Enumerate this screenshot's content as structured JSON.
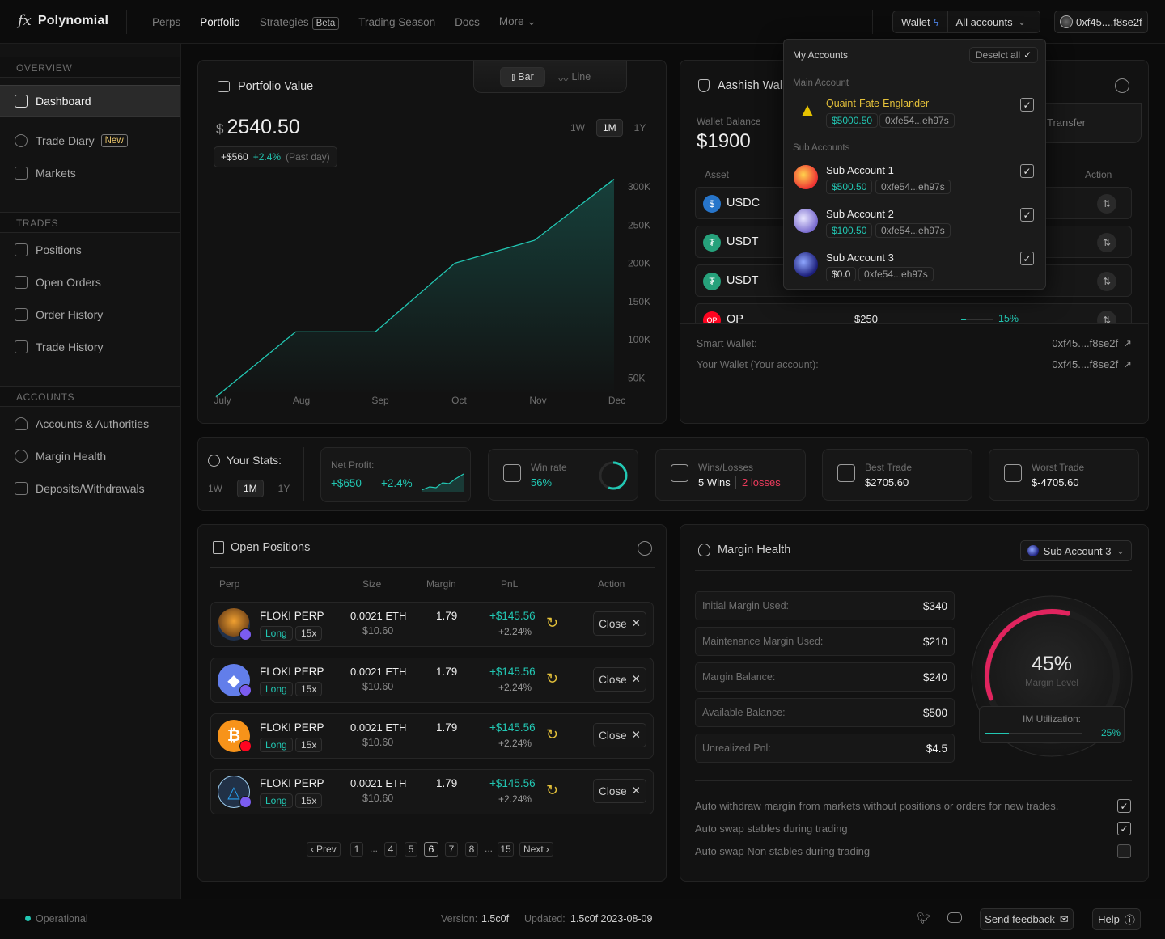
{
  "app": {
    "name": "Polynomial",
    "logo_glyph": "fx"
  },
  "nav": {
    "items": [
      "Perps",
      "Portfolio",
      "Strategies",
      "Trading Season",
      "Docs",
      "More"
    ],
    "strategies_badge": "Beta",
    "active": "Portfolio"
  },
  "header": {
    "wallet_label": "Wallet",
    "accounts_label": "All accounts",
    "address": "0xf45....f8se2f"
  },
  "sidebar": {
    "overview_label": "OVERVIEW",
    "overview_items": [
      {
        "label": "Dashboard",
        "icon": "dashboard-icon"
      },
      {
        "label": "Trade Diary",
        "icon": "diary-icon",
        "badge": "New"
      },
      {
        "label": "Markets",
        "icon": "markets-icon"
      }
    ],
    "trades_label": "TRADES",
    "trades_items": [
      {
        "label": "Positions"
      },
      {
        "label": "Open Orders"
      },
      {
        "label": "Order History"
      },
      {
        "label": "Trade History"
      }
    ],
    "accounts_label": "ACCOUNTS",
    "accounts_items": [
      {
        "label": "Accounts & Authorities"
      },
      {
        "label": "Margin Health"
      },
      {
        "label": "Deposits/Withdrawals"
      }
    ]
  },
  "portfolio": {
    "title": "Portfolio Value",
    "toggle": {
      "bar": "Bar",
      "line": "Line"
    },
    "currency": "$",
    "value": "2540.50",
    "change_amount": "+$560",
    "change_pct": "+2.4%",
    "change_period": "(Past day)",
    "ranges": [
      "1W",
      "1M",
      "1Y"
    ],
    "active_range": "1M"
  },
  "chart_data": {
    "type": "area",
    "x": [
      "July",
      "Aug",
      "Sep",
      "Oct",
      "Nov",
      "Dec"
    ],
    "y": [
      25000,
      110000,
      110000,
      200000,
      230000,
      310000
    ],
    "y_ticks": [
      "300K",
      "250K",
      "200K",
      "150K",
      "100K",
      "50K"
    ],
    "ylim": [
      25000,
      320000
    ],
    "color": "#22c7b3",
    "grid": false
  },
  "wallet": {
    "title": "Aashish Wall",
    "balance_label": "Wallet Balance",
    "balance": "$1900",
    "transfer_label": "Transfer",
    "col_asset": "Asset",
    "col_action": "Action",
    "assets": [
      {
        "name": "USDC",
        "color": "#2775ca",
        "symbol": "$"
      },
      {
        "name": "USDT",
        "color": "#26a17b",
        "symbol": "₮"
      },
      {
        "name": "USDT",
        "color": "#26a17b",
        "symbol": "₮"
      },
      {
        "name": "OP",
        "color": "#ff0420",
        "symbol": "OP",
        "amount": "$250",
        "pct": "15%"
      }
    ],
    "smart_wallet_label": "Smart Wallet:",
    "smart_wallet": "0xf45....f8se2f",
    "your_wallet_label": "Your Wallet (Your account):",
    "your_wallet": "0xf45....f8se2f"
  },
  "accounts_dropdown": {
    "title": "My Accounts",
    "deselect": "Deselct all",
    "main_label": "Main Account",
    "sub_label": "Sub Accounts",
    "accounts": [
      {
        "name": "Quaint-Fate-Englander",
        "balance": "$5000.50",
        "address": "0xfe54...eh97s",
        "checked": true
      },
      {
        "name": "Sub Account 1",
        "balance": "$500.50",
        "address": "0xfe54...eh97s",
        "checked": true
      },
      {
        "name": "Sub Account 2",
        "balance": "$100.50",
        "address": "0xfe54...eh97s",
        "checked": true
      },
      {
        "name": "Sub Account 3",
        "balance": "$0.0",
        "address": "0xfe54...eh97s",
        "checked": true
      }
    ]
  },
  "stats": {
    "title": "Your Stats:",
    "ranges": [
      "1W",
      "1M",
      "1Y"
    ],
    "active_range": "1M",
    "net_profit_label": "Net Profit:",
    "net_profit": "+$650",
    "net_profit_pct": "+2.4%",
    "win_rate_label": "Win rate",
    "win_rate": "56%",
    "win_rate_fraction": 0.56,
    "wl_label": "Wins/Losses",
    "wins": "5 Wins",
    "losses": "2 losses",
    "best_label": "Best Trade",
    "best": "$2705.60",
    "worst_label": "Worst Trade",
    "worst": "$-4705.60"
  },
  "positions": {
    "title": "Open Positions",
    "columns": [
      "Perp",
      "Size",
      "Margin",
      "PnL",
      "Action"
    ],
    "rows": [
      {
        "market": "FLOKI PERP",
        "side": "Long",
        "leverage": "15x",
        "size": "0.0021 ETH",
        "size_usd": "$10.60",
        "margin": "1.79",
        "pnl": "+$145.56",
        "pnl_pct": "+2.24%",
        "action": "Close",
        "coin": "floki"
      },
      {
        "market": "FLOKI PERP",
        "side": "Long",
        "leverage": "15x",
        "size": "0.0021 ETH",
        "size_usd": "$10.60",
        "margin": "1.79",
        "pnl": "+$145.56",
        "pnl_pct": "+2.24%",
        "action": "Close",
        "coin": "eth"
      },
      {
        "market": "FLOKI PERP",
        "side": "Long",
        "leverage": "15x",
        "size": "0.0021 ETH",
        "size_usd": "$10.60",
        "margin": "1.79",
        "pnl": "+$145.56",
        "pnl_pct": "+2.24%",
        "action": "Close",
        "coin": "btc"
      },
      {
        "market": "FLOKI PERP",
        "side": "Long",
        "leverage": "15x",
        "size": "0.0021 ETH",
        "size_usd": "$10.60",
        "margin": "1.79",
        "pnl": "+$145.56",
        "pnl_pct": "+2.24%",
        "action": "Close",
        "coin": "arb"
      }
    ],
    "pagination": {
      "prev": "Prev",
      "next": "Next",
      "pages": [
        "1",
        "...",
        "4",
        "5",
        "6",
        "7",
        "8",
        "...",
        "15"
      ],
      "current": "6"
    }
  },
  "margin": {
    "title": "Margin Health",
    "account_select": "Sub Account 3",
    "rows": [
      {
        "label": "Initial Margin Used:",
        "value": "$340"
      },
      {
        "label": "Maintenance Margin Used:",
        "value": "$210"
      },
      {
        "label": "Margin Balance:",
        "value": "$240"
      },
      {
        "label": "Available Balance:",
        "value": "$500"
      },
      {
        "label": "Unrealized Pnl:",
        "value": "$4.5"
      }
    ],
    "gauge_value": "45%",
    "gauge_fraction": 0.45,
    "gauge_label": "Margin Level",
    "im_label": "IM Utilization:",
    "im_value": "25%",
    "im_fraction": 0.25,
    "options": [
      {
        "label": "Auto withdraw margin from markets without positions or orders for new trades.",
        "checked": true
      },
      {
        "label": "Auto swap stables during trading",
        "checked": true
      },
      {
        "label": "Auto swap Non stables during trading",
        "checked": false
      }
    ]
  },
  "footer": {
    "status": "Operational",
    "version_label": "Version:",
    "version": "1.5c0f",
    "updated_label": "Updated:",
    "updated": "1.5c0f 2023-08-09",
    "feedback": "Send feedback",
    "help": "Help"
  }
}
